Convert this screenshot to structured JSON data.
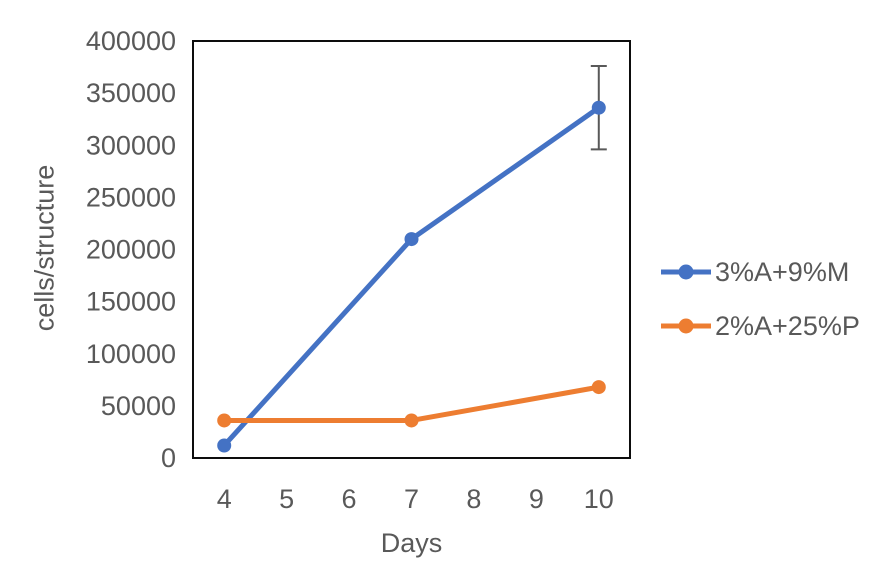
{
  "chart_data": {
    "type": "line",
    "title": "",
    "xlabel": "Days",
    "ylabel": "cells/structure",
    "xticks": [
      4,
      5,
      6,
      7,
      8,
      9,
      10
    ],
    "ylim": [
      0,
      400000
    ],
    "ytick_step": 50000,
    "yticks": [
      0,
      50000,
      100000,
      150000,
      200000,
      250000,
      300000,
      350000,
      400000
    ],
    "grid": false,
    "legend_position": "right",
    "series": [
      {
        "name": "3%A+9%M",
        "color": "#4472C4",
        "x": [
          4,
          7,
          10
        ],
        "values": [
          12000,
          210000,
          336000
        ],
        "error_bars": [
          {
            "x": 10,
            "value": 336000,
            "plus": 40000,
            "minus": 40000
          }
        ]
      },
      {
        "name": "2%A+25%P",
        "color": "#ED7D31",
        "x": [
          4,
          7,
          10
        ],
        "values": [
          36000,
          36000,
          68000
        ],
        "error_bars": []
      }
    ]
  },
  "styles": {
    "axis_text_color": "#595959",
    "plot_border_color": "#0d0d0d",
    "error_bar_color": "#595959",
    "background": "#ffffff"
  }
}
